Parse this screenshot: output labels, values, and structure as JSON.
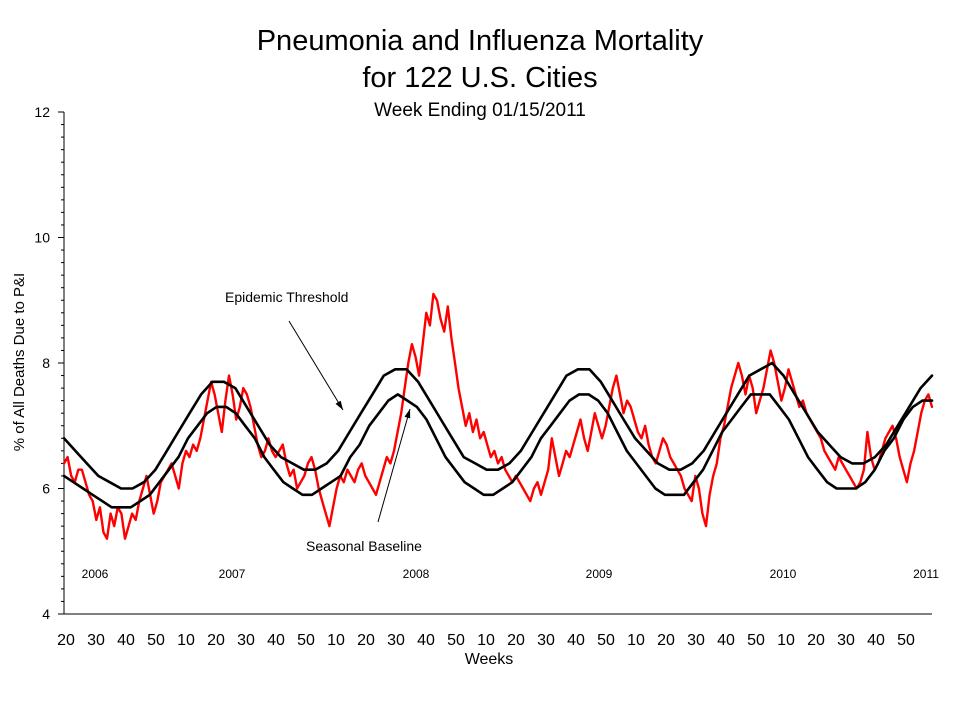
{
  "header": {
    "title_line1": "Pneumonia and Influenza Mortality",
    "title_line2": "for 122 U.S. Cities",
    "subtitle": "Week Ending   01/15/2011"
  },
  "chart_data": {
    "type": "line",
    "title": "Pneumonia and Influenza Mortality for 122 U.S. Cities",
    "subtitle": "Week Ending   01/15/2011",
    "xlabel": "Weeks",
    "ylabel": "% of All Deaths Due to P&I",
    "ylim": [
      4,
      12
    ],
    "y_ticks": [
      "4",
      "6",
      "8",
      "10",
      "12"
    ],
    "x_tick_labels": [
      "20",
      "30",
      "40",
      "50",
      "10",
      "20",
      "30",
      "40",
      "50",
      "10",
      "20",
      "30",
      "40",
      "50",
      "10",
      "20",
      "30",
      "40",
      "50",
      "10",
      "20",
      "30",
      "40",
      "50",
      "10",
      "20",
      "30",
      "40",
      "50"
    ],
    "year_labels": [
      "2006",
      "2007",
      "2008",
      "2009",
      "2010",
      "2011"
    ],
    "annotations": [
      "Epidemic Threshold",
      "Seasonal Baseline"
    ],
    "grid": false,
    "legend": "none",
    "colors": {
      "observed": "#ff0000",
      "baseline": "#000000",
      "threshold": "#000000"
    },
    "series": [
      {
        "values": [
          6.4,
          6.5,
          6.2,
          6.1,
          6.3,
          6.3,
          6.1,
          5.9,
          5.8,
          5.5,
          5.7,
          5.3,
          5.2,
          5.6,
          5.4,
          5.7,
          5.6,
          5.2,
          5.4,
          5.6,
          5.5,
          5.8,
          6.0,
          6.2,
          5.9,
          5.6,
          5.8,
          6.1,
          6.2,
          6.3,
          6.4,
          6.2,
          6.0,
          6.4,
          6.6,
          6.5,
          6.7,
          6.6,
          6.8,
          7.1,
          7.4,
          7.7,
          7.5,
          7.2,
          6.9,
          7.4,
          7.8,
          7.5,
          7.1,
          7.3,
          7.6,
          7.5,
          7.3,
          7.0,
          6.7,
          6.5,
          6.6,
          6.8,
          6.6,
          6.5,
          6.6,
          6.7,
          6.4,
          6.2,
          6.3,
          6.0,
          6.1,
          6.2,
          6.4,
          6.5,
          6.3,
          6.0,
          5.8,
          5.6,
          5.4,
          5.7,
          6.0,
          6.2,
          6.1,
          6.3,
          6.2,
          6.1,
          6.3,
          6.4,
          6.2,
          6.1,
          6.0,
          5.9,
          6.1,
          6.3,
          6.5,
          6.4,
          6.6,
          6.9,
          7.2,
          7.6,
          8.0,
          8.3,
          8.1,
          7.8,
          8.3,
          8.8,
          8.6,
          9.1,
          9.0,
          8.7,
          8.5,
          8.9,
          8.4,
          8.0,
          7.6,
          7.3,
          7.0,
          7.2,
          6.9,
          7.1,
          6.8,
          6.9,
          6.7,
          6.5,
          6.6,
          6.4,
          6.5,
          6.3,
          6.2,
          6.1,
          6.2,
          6.1,
          6.0,
          5.9,
          5.8,
          6.0,
          6.1,
          5.9,
          6.1,
          6.3,
          6.8,
          6.5,
          6.2,
          6.4,
          6.6,
          6.5,
          6.7,
          6.9,
          7.1,
          6.8,
          6.6,
          6.9,
          7.2,
          7.0,
          6.8,
          7.0,
          7.3,
          7.6,
          7.8,
          7.5,
          7.2,
          7.4,
          7.3,
          7.1,
          6.9,
          6.8,
          7.0,
          6.7,
          6.5,
          6.4,
          6.6,
          6.8,
          6.7,
          6.5,
          6.4,
          6.3,
          6.2,
          6.0,
          5.9,
          5.8,
          6.2,
          6.0,
          5.6,
          5.4,
          5.9,
          6.2,
          6.4,
          6.8,
          7.0,
          7.3,
          7.6,
          7.8,
          8.0,
          7.8,
          7.5,
          7.8,
          7.6,
          7.2,
          7.4,
          7.6,
          7.9,
          8.2,
          8.0,
          7.7,
          7.4,
          7.6,
          7.9,
          7.7,
          7.5,
          7.3,
          7.4,
          7.2,
          7.1,
          7.0,
          6.9,
          6.8,
          6.6,
          6.5,
          6.4,
          6.3,
          6.5,
          6.4,
          6.3,
          6.2,
          6.1,
          6.0,
          6.1,
          6.3,
          6.9,
          6.5,
          6.3,
          6.4,
          6.6,
          6.8,
          6.9,
          7.0,
          6.8,
          6.5,
          6.3,
          6.1,
          6.4,
          6.6,
          6.9,
          7.2,
          7.4,
          7.5,
          7.3
        ]
      },
      {
        "values": [
          6.2,
          6.1,
          6.0,
          5.9,
          5.8,
          5.7,
          5.7,
          5.7,
          5.8,
          5.9,
          6.1,
          6.3,
          6.5,
          6.8,
          7.0,
          7.2,
          7.3,
          7.3,
          7.2,
          7.0,
          6.8,
          6.5,
          6.3,
          6.1,
          6.0,
          5.9,
          5.9,
          6.0,
          6.1,
          6.2,
          6.5,
          6.7,
          7.0,
          7.2,
          7.4,
          7.5,
          7.4,
          7.3,
          7.1,
          6.8,
          6.5,
          6.3,
          6.1,
          6.0,
          5.9,
          5.9,
          6.0,
          6.1,
          6.3,
          6.5,
          6.8,
          7.0,
          7.2,
          7.4,
          7.5,
          7.5,
          7.4,
          7.2,
          6.9,
          6.6,
          6.4,
          6.2,
          6.0,
          5.9,
          5.9,
          5.9,
          6.1,
          6.3,
          6.6,
          6.9,
          7.1,
          7.3,
          7.5,
          7.5,
          7.5,
          7.3,
          7.1,
          6.8,
          6.5,
          6.3,
          6.1,
          6.0,
          6.0,
          6.0,
          6.1,
          6.3,
          6.6,
          6.8,
          7.1,
          7.3,
          7.4,
          7.4
        ]
      },
      {
        "values": [
          6.8,
          6.6,
          6.4,
          6.2,
          6.1,
          6.0,
          6.0,
          6.1,
          6.3,
          6.6,
          6.9,
          7.2,
          7.5,
          7.7,
          7.7,
          7.6,
          7.3,
          7.0,
          6.7,
          6.5,
          6.4,
          6.3,
          6.3,
          6.4,
          6.6,
          6.9,
          7.2,
          7.5,
          7.8,
          7.9,
          7.9,
          7.7,
          7.4,
          7.1,
          6.8,
          6.5,
          6.4,
          6.3,
          6.3,
          6.4,
          6.6,
          6.9,
          7.2,
          7.5,
          7.8,
          7.9,
          7.9,
          7.7,
          7.4,
          7.1,
          6.8,
          6.6,
          6.4,
          6.3,
          6.3,
          6.4,
          6.6,
          6.9,
          7.2,
          7.5,
          7.8,
          7.9,
          8.0,
          7.8,
          7.5,
          7.2,
          6.9,
          6.7,
          6.5,
          6.4,
          6.4,
          6.5,
          6.7,
          7.0,
          7.3,
          7.6,
          7.8
        ]
      }
    ]
  }
}
